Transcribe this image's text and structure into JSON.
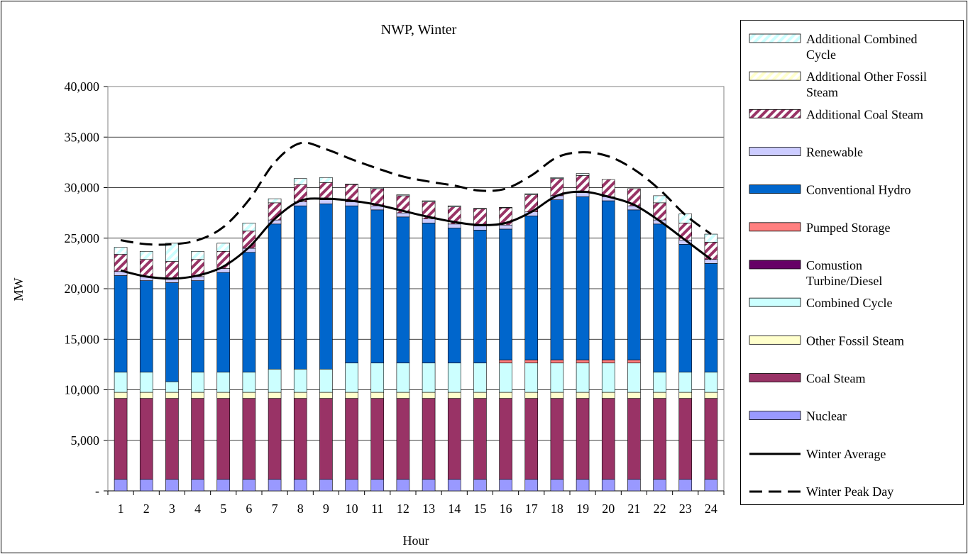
{
  "chart_data": {
    "type": "bar",
    "stacked": true,
    "title": "NWP, Winter",
    "x_label": "Hour",
    "y_label": "MW",
    "categories": [
      "1",
      "2",
      "3",
      "4",
      "5",
      "6",
      "7",
      "8",
      "9",
      "10",
      "11",
      "12",
      "13",
      "14",
      "15",
      "16",
      "17",
      "18",
      "19",
      "20",
      "21",
      "22",
      "23",
      "24"
    ],
    "ylim": [
      0,
      40000
    ],
    "yticks": [
      {
        "value": 0,
        "label": "-"
      },
      {
        "value": 5000,
        "label": "5,000"
      },
      {
        "value": 10000,
        "label": "10,000"
      },
      {
        "value": 15000,
        "label": "15,000"
      },
      {
        "value": 20000,
        "label": "20,000"
      },
      {
        "value": 25000,
        "label": "25,000"
      },
      {
        "value": 30000,
        "label": "30,000"
      },
      {
        "value": 35000,
        "label": "35,000"
      },
      {
        "value": 40000,
        "label": "40,000"
      }
    ],
    "grid": true,
    "legend": "right",
    "series": [
      {
        "name": "Nuclear",
        "color": "#9999ff",
        "values": [
          1150,
          1150,
          1150,
          1150,
          1150,
          1150,
          1150,
          1150,
          1150,
          1150,
          1150,
          1150,
          1150,
          1150,
          1150,
          1150,
          1150,
          1150,
          1150,
          1150,
          1150,
          1150,
          1150,
          1150
        ]
      },
      {
        "name": "Coal Steam",
        "color": "#993366",
        "values": [
          8000,
          8000,
          8000,
          8000,
          8000,
          8000,
          8000,
          8000,
          8000,
          8000,
          8000,
          8000,
          8000,
          8000,
          8000,
          8000,
          8000,
          8000,
          8000,
          8000,
          8000,
          8000,
          8000,
          8000
        ]
      },
      {
        "name": "Other Fossil Steam",
        "color": "#ffffcc",
        "values": [
          600,
          600,
          600,
          600,
          600,
          600,
          600,
          600,
          600,
          600,
          600,
          600,
          600,
          600,
          600,
          600,
          600,
          600,
          600,
          600,
          600,
          600,
          600,
          600
        ]
      },
      {
        "name": "Combined Cycle",
        "color": "#ccffff",
        "values": [
          2000,
          2000,
          1050,
          2000,
          2000,
          2000,
          2300,
          2300,
          2300,
          2900,
          2900,
          2900,
          2900,
          2900,
          2900,
          2900,
          2900,
          2900,
          2900,
          2900,
          2900,
          2000,
          2000,
          2000
        ]
      },
      {
        "name": "Comustion Turbine/Diesel",
        "color": "#660066",
        "values": [
          0,
          0,
          0,
          0,
          0,
          0,
          0,
          0,
          0,
          0,
          0,
          0,
          0,
          0,
          0,
          0,
          0,
          0,
          0,
          0,
          0,
          0,
          0,
          0
        ]
      },
      {
        "name": "Pumped Storage",
        "color": "#ff8080",
        "values": [
          0,
          0,
          0,
          0,
          0,
          0,
          0,
          0,
          0,
          0,
          0,
          0,
          0,
          0,
          0,
          300,
          300,
          300,
          300,
          300,
          300,
          0,
          0,
          0
        ]
      },
      {
        "name": "Conventional Hydro",
        "color": "#0066cc",
        "values": [
          9550,
          9050,
          9800,
          9050,
          9850,
          11850,
          14350,
          16150,
          16350,
          15550,
          15150,
          14450,
          13850,
          13350,
          13150,
          12950,
          14250,
          15850,
          16150,
          15750,
          14850,
          14650,
          12650,
          10750
        ]
      },
      {
        "name": "Renewable",
        "color": "#ccccff",
        "values": [
          400,
          400,
          400,
          400,
          400,
          400,
          400,
          400,
          400,
          400,
          400,
          400,
          400,
          400,
          400,
          400,
          400,
          400,
          400,
          400,
          400,
          400,
          400,
          400
        ]
      },
      {
        "name": "Additional Coal Steam",
        "color": "#993366",
        "pattern": "hatch",
        "values": [
          1700,
          1700,
          1700,
          1700,
          1700,
          1700,
          1700,
          1700,
          1700,
          1700,
          1700,
          1700,
          1700,
          1700,
          1700,
          1700,
          1700,
          1700,
          1700,
          1700,
          1700,
          1700,
          1700,
          1700
        ]
      },
      {
        "name": "Additional Other Fossil Steam",
        "color": "#ffffcc",
        "pattern": "hatch",
        "values": [
          0,
          0,
          0,
          0,
          0,
          0,
          0,
          0,
          0,
          0,
          0,
          0,
          0,
          0,
          0,
          0,
          0,
          0,
          0,
          0,
          0,
          0,
          0,
          0
        ]
      },
      {
        "name": "Additional Combined Cycle",
        "color": "#ccffff",
        "pattern": "hatch",
        "values": [
          700,
          800,
          1800,
          800,
          800,
          800,
          400,
          600,
          500,
          50,
          100,
          100,
          100,
          100,
          50,
          50,
          100,
          100,
          200,
          0,
          0,
          700,
          900,
          800
        ]
      },
      {
        "name": "Winter Average",
        "type": "line",
        "color": "#000000",
        "dash": false,
        "values": [
          21800,
          21200,
          21000,
          21300,
          22200,
          24100,
          26900,
          28700,
          28900,
          28700,
          28300,
          27700,
          27100,
          26600,
          26300,
          26500,
          27600,
          29200,
          29600,
          29100,
          28300,
          26700,
          24800,
          22900
        ]
      },
      {
        "name": "Winter Peak Day",
        "type": "line",
        "color": "#000000",
        "dash": true,
        "values": [
          24800,
          24400,
          24400,
          24800,
          26100,
          28800,
          32500,
          34400,
          33800,
          32800,
          31900,
          31100,
          30600,
          30200,
          29700,
          29900,
          31200,
          33000,
          33500,
          33100,
          31800,
          29800,
          27300,
          25400
        ]
      }
    ]
  }
}
